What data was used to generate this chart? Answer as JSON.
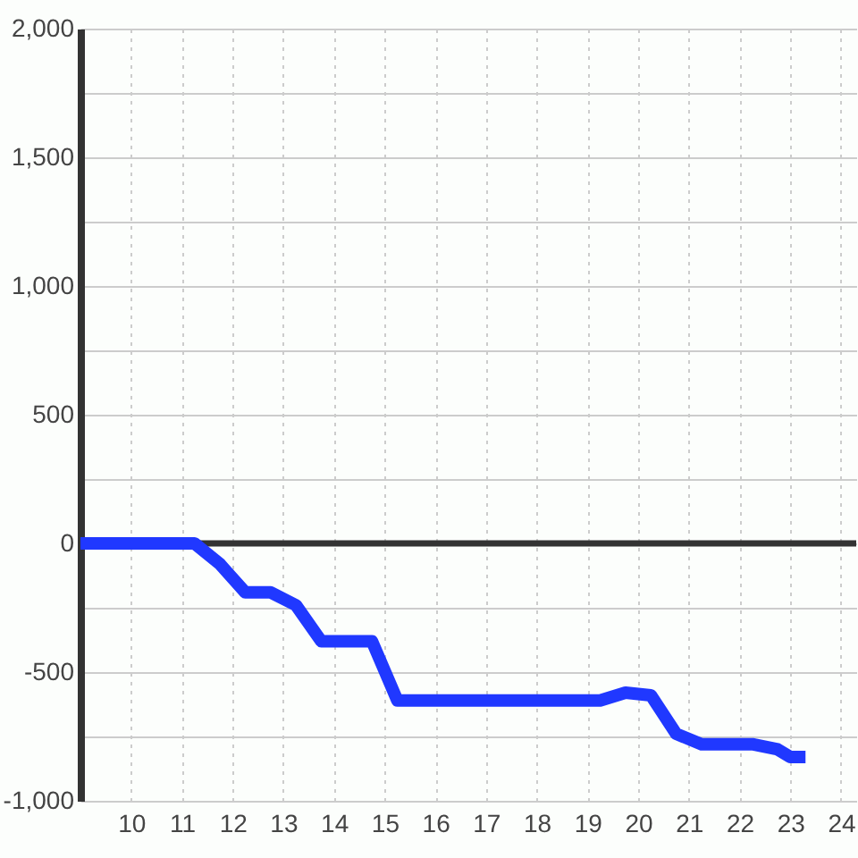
{
  "chart_data": {
    "type": "line",
    "x": [
      9,
      11.25,
      11.75,
      12.25,
      12.75,
      13.25,
      13.75,
      14.75,
      15.25,
      19.25,
      19.75,
      20.25,
      20.75,
      21.25,
      22.25,
      22.75,
      23.0,
      23.3
    ],
    "series": [
      {
        "color": "#2038ff",
        "values": [
          0,
          0,
          -80,
          -190,
          -190,
          -240,
          -380,
          -380,
          -610,
          -610,
          -580,
          -590,
          -740,
          -780,
          -780,
          -800,
          -830,
          -830
        ]
      }
    ],
    "xlim": [
      9,
      24.3
    ],
    "xticks": [
      10,
      11,
      12,
      13,
      14,
      15,
      16,
      17,
      18,
      19,
      20,
      21,
      22,
      23,
      24
    ],
    "ylim": [
      -1000,
      2000
    ],
    "yticks": [
      {
        "value": -1000,
        "label": "-1,000"
      },
      {
        "value": -750,
        "label": null
      },
      -500,
      {
        "value": -250,
        "label": null
      },
      0,
      {
        "value": 250,
        "label": null
      },
      500,
      {
        "value": 750,
        "label": null
      },
      {
        "value": 1000,
        "label": "1,000"
      },
      {
        "value": 1250,
        "label": null
      },
      {
        "value": 1500,
        "label": "1,500"
      },
      {
        "value": 1750,
        "label": null
      },
      {
        "value": 2000,
        "label": "2,000"
      }
    ],
    "grid": true,
    "ref_lines": [
      {
        "axis": "y",
        "value": 0,
        "color": "#333333"
      }
    ],
    "line_style": "solid"
  }
}
